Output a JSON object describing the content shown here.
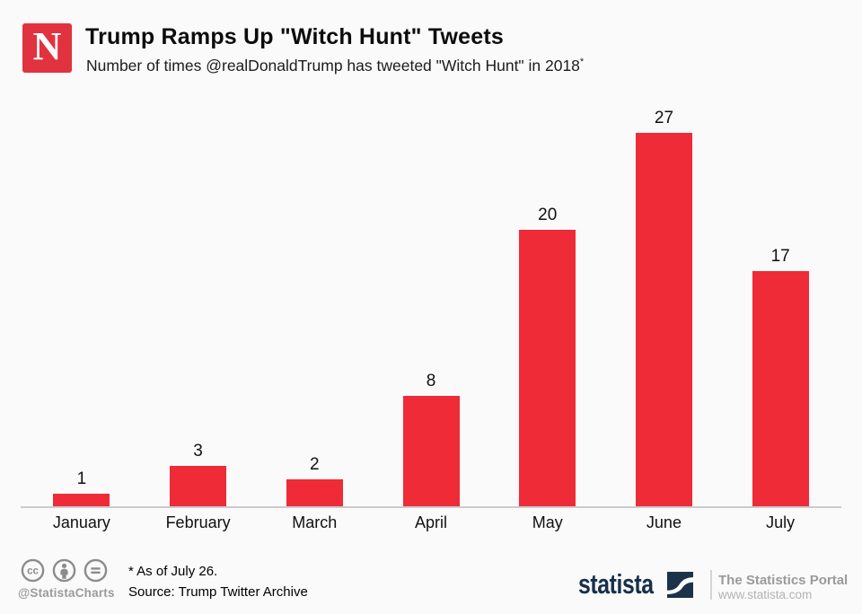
{
  "page": {
    "background": "#fbfafa"
  },
  "header": {
    "logo_letter": "N",
    "logo_color": "#e1323f",
    "title": "Trump Ramps Up \"Witch Hunt\" Tweets",
    "subtitle": "Number of times @realDonaldTrump has tweeted \"Witch Hunt\" in 2018",
    "subtitle_footnote_marker": "*"
  },
  "chart_data": {
    "type": "bar",
    "categories": [
      "January",
      "February",
      "March",
      "April",
      "May",
      "June",
      "July"
    ],
    "values": [
      1,
      3,
      2,
      8,
      20,
      27,
      17
    ],
    "title": "Trump Ramps Up \"Witch Hunt\" Tweets",
    "xlabel": "",
    "ylabel": "",
    "ylim": [
      0,
      30
    ],
    "grid": false,
    "legend": false,
    "data_labels": true,
    "bar_color": "#ee2b37",
    "axis_line_color": "#cbcbcb"
  },
  "footer": {
    "license_icons": [
      "cc-icon",
      "attribution-icon",
      "no-derivatives-icon"
    ],
    "handle": "@StatistaCharts",
    "footnote": "* As of July 26.",
    "source": "Source: Trump Twitter Archive",
    "statista_wordmark": "statista",
    "statista_navy": "#1b3249",
    "portal_label": "The Statistics Portal",
    "portal_url": "www.statista.com"
  }
}
